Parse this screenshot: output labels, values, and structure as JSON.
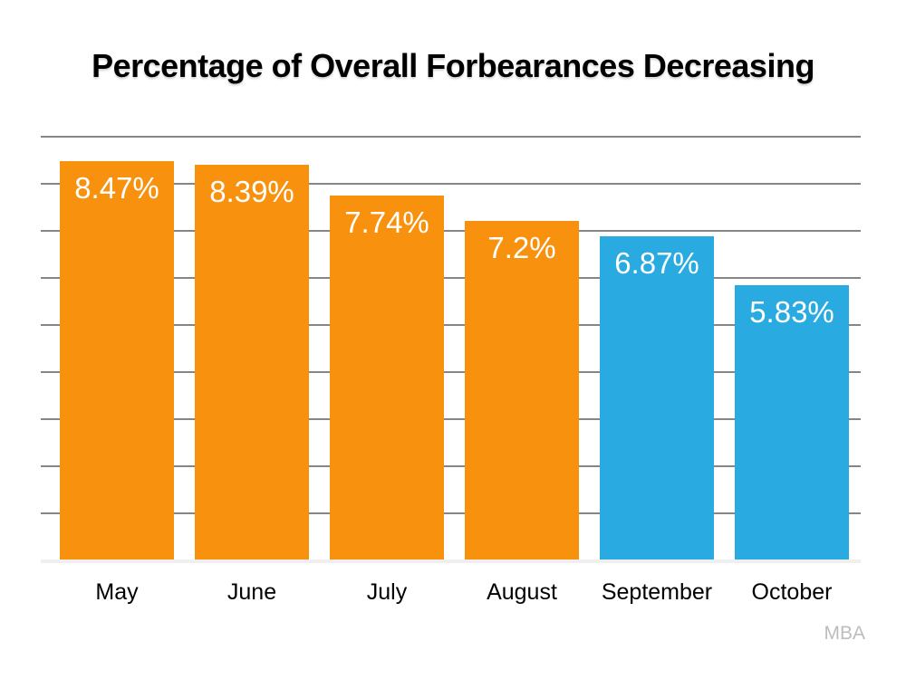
{
  "chart_data": {
    "type": "bar",
    "title": "Percentage of Overall Forbearances Decreasing",
    "categories": [
      "May",
      "June",
      "July",
      "August",
      "September",
      "October"
    ],
    "values": [
      8.47,
      8.39,
      7.74,
      7.2,
      6.87,
      5.83
    ],
    "value_labels": [
      "8.47%",
      "8.39%",
      "7.74%",
      "7.2%",
      "6.87%",
      "5.83%"
    ],
    "bar_colors": [
      "#f8920e",
      "#f8920e",
      "#f8920e",
      "#f8920e",
      "#29abe2",
      "#29abe2"
    ],
    "xlabel": "",
    "ylabel": "",
    "ylim": [
      0,
      9
    ],
    "gridline_interval": 1,
    "grid_visible": true,
    "legend": "none",
    "source": "MBA"
  },
  "colors": {
    "orange": "#f8920e",
    "blue": "#29abe2",
    "gridline": "#868686",
    "baseline": "#efefef",
    "title_text": "#000000",
    "value_text": "#ffffff",
    "source_text": "#bdbdbd",
    "background": "#ffffff"
  }
}
